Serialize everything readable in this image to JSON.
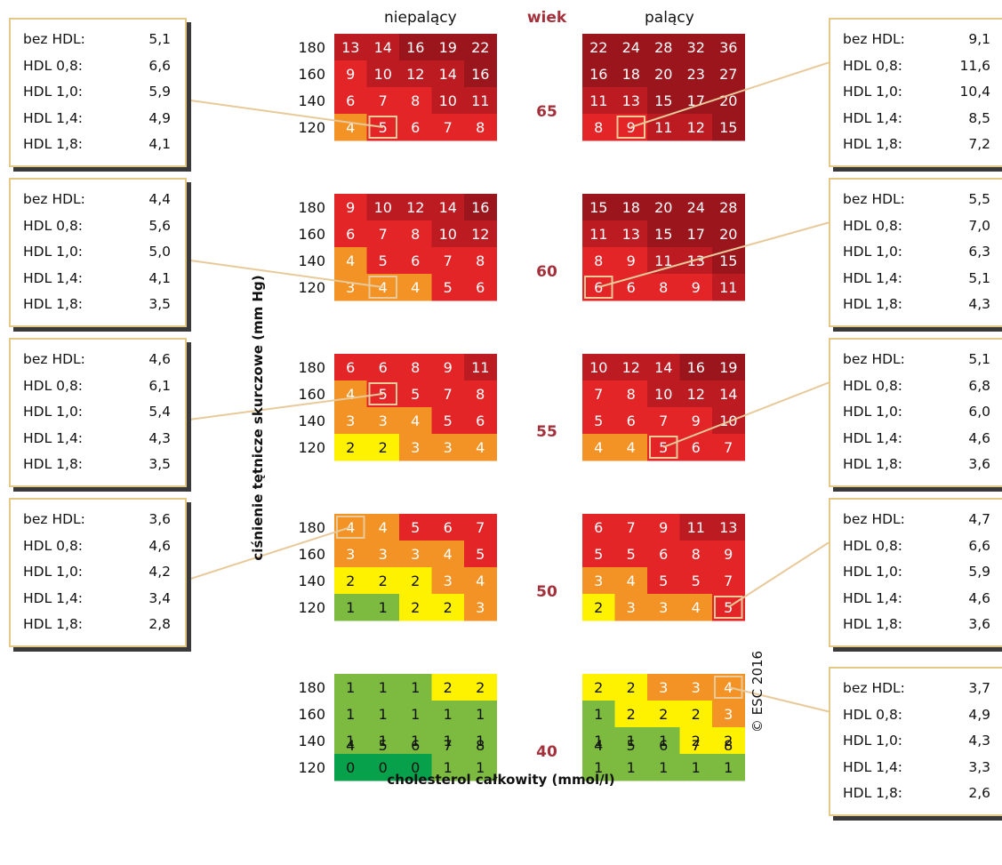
{
  "headers": {
    "nonsmoker": "niepalący",
    "age": "wiek",
    "smoker": "palący"
  },
  "y_axis_title": "ciśnienie tętnicze skurczowe (mm Hg)",
  "x_axis_title": "cholesterol całkowity (mmol/l)",
  "copyright": "© ESC 2016",
  "colors": {
    "dark_green": "#07a14b",
    "green": "#7dbb40",
    "yellow": "#fff200",
    "orange": "#f39325",
    "red": "#e42528",
    "dark_red": "#bd1b22",
    "darkest_red": "#9b151c",
    "highlight": "#e8c99a",
    "age_label": "#a3303a"
  },
  "chart_data": {
    "type": "heatmap",
    "sbp_levels": [
      180,
      160,
      140,
      120
    ],
    "cholesterol_levels": [
      4,
      5,
      6,
      7,
      8
    ],
    "panels": [
      {
        "age": 65,
        "nonsmoker": [
          [
            13,
            14,
            16,
            19,
            22
          ],
          [
            9,
            10,
            12,
            14,
            16
          ],
          [
            6,
            7,
            8,
            10,
            11
          ],
          [
            4,
            5,
            6,
            7,
            8
          ]
        ],
        "smoker": [
          [
            22,
            24,
            28,
            32,
            36
          ],
          [
            16,
            18,
            20,
            23,
            27
          ],
          [
            11,
            13,
            15,
            17,
            20
          ],
          [
            8,
            9,
            11,
            12,
            15
          ]
        ],
        "nonsmoker_highlight": {
          "sbp": 120,
          "chol": 5
        },
        "smoker_highlight": {
          "sbp": 120,
          "chol": 5
        },
        "nonsmoker_box": [
          {
            "label": "bez HDL:",
            "value": "5,1"
          },
          {
            "label": "HDL 0,8:",
            "value": "6,6"
          },
          {
            "label": "HDL 1,0:",
            "value": "5,9"
          },
          {
            "label": "HDL 1,4:",
            "value": "4,9"
          },
          {
            "label": "HDL 1,8:",
            "value": "4,1"
          }
        ],
        "smoker_box": [
          {
            "label": "bez HDL:",
            "value": "9,1"
          },
          {
            "label": "HDL 0,8:",
            "value": "11,6"
          },
          {
            "label": "HDL 1,0:",
            "value": "10,4"
          },
          {
            "label": "HDL 1,4:",
            "value": "8,5"
          },
          {
            "label": "HDL 1,8:",
            "value": "7,2"
          }
        ]
      },
      {
        "age": 60,
        "nonsmoker": [
          [
            9,
            10,
            12,
            14,
            16
          ],
          [
            6,
            7,
            8,
            10,
            12
          ],
          [
            4,
            5,
            6,
            7,
            8
          ],
          [
            3,
            4,
            4,
            5,
            6
          ]
        ],
        "smoker": [
          [
            15,
            18,
            20,
            24,
            28
          ],
          [
            11,
            13,
            15,
            17,
            20
          ],
          [
            8,
            9,
            11,
            13,
            15
          ],
          [
            6,
            6,
            8,
            9,
            11
          ]
        ],
        "nonsmoker_highlight": {
          "sbp": 120,
          "chol": 5
        },
        "smoker_highlight": {
          "sbp": 120,
          "chol": 4
        },
        "nonsmoker_box": [
          {
            "label": "bez HDL:",
            "value": "4,4"
          },
          {
            "label": "HDL 0,8:",
            "value": "5,6"
          },
          {
            "label": "HDL 1,0:",
            "value": "5,0"
          },
          {
            "label": "HDL 1,4:",
            "value": "4,1"
          },
          {
            "label": "HDL 1,8:",
            "value": "3,5"
          }
        ],
        "smoker_box": [
          {
            "label": "bez HDL:",
            "value": "5,5"
          },
          {
            "label": "HDL 0,8:",
            "value": "7,0"
          },
          {
            "label": "HDL 1,0:",
            "value": "6,3"
          },
          {
            "label": "HDL 1,4:",
            "value": "5,1"
          },
          {
            "label": "HDL 1,8:",
            "value": "4,3"
          }
        ]
      },
      {
        "age": 55,
        "nonsmoker": [
          [
            6,
            6,
            8,
            9,
            11
          ],
          [
            4,
            5,
            5,
            7,
            8
          ],
          [
            3,
            3,
            4,
            5,
            6
          ],
          [
            2,
            2,
            3,
            3,
            4
          ]
        ],
        "smoker": [
          [
            10,
            12,
            14,
            16,
            19
          ],
          [
            7,
            8,
            10,
            12,
            14
          ],
          [
            5,
            6,
            7,
            9,
            10
          ],
          [
            4,
            4,
            5,
            6,
            7
          ]
        ],
        "nonsmoker_highlight": {
          "sbp": 160,
          "chol": 5
        },
        "smoker_highlight": {
          "sbp": 120,
          "chol": 6
        },
        "nonsmoker_box": [
          {
            "label": "bez HDL:",
            "value": "4,6"
          },
          {
            "label": "HDL 0,8:",
            "value": "6,1"
          },
          {
            "label": "HDL 1,0:",
            "value": "5,4"
          },
          {
            "label": "HDL 1,4:",
            "value": "4,3"
          },
          {
            "label": "HDL 1,8:",
            "value": "3,5"
          }
        ],
        "smoker_box": [
          {
            "label": "bez HDL:",
            "value": "5,1"
          },
          {
            "label": "HDL 0,8:",
            "value": "6,8"
          },
          {
            "label": "HDL 1,0:",
            "value": "6,0"
          },
          {
            "label": "HDL 1,4:",
            "value": "4,6"
          },
          {
            "label": "HDL 1,8:",
            "value": "3,6"
          }
        ]
      },
      {
        "age": 50,
        "nonsmoker": [
          [
            4,
            4,
            5,
            6,
            7
          ],
          [
            3,
            3,
            3,
            4,
            5
          ],
          [
            2,
            2,
            2,
            3,
            4
          ],
          [
            1,
            1,
            2,
            2,
            3
          ]
        ],
        "smoker": [
          [
            6,
            7,
            9,
            11,
            13
          ],
          [
            5,
            5,
            6,
            8,
            9
          ],
          [
            3,
            4,
            5,
            5,
            7
          ],
          [
            2,
            3,
            3,
            4,
            5
          ]
        ],
        "nonsmoker_highlight": {
          "sbp": 180,
          "chol": 4
        },
        "smoker_highlight": {
          "sbp": 120,
          "chol": 8
        },
        "nonsmoker_box": [
          {
            "label": "bez HDL:",
            "value": "3,6"
          },
          {
            "label": "HDL 0,8:",
            "value": "4,6"
          },
          {
            "label": "HDL 1,0:",
            "value": "4,2"
          },
          {
            "label": "HDL 1,4:",
            "value": "3,4"
          },
          {
            "label": "HDL 1,8:",
            "value": "2,8"
          }
        ],
        "smoker_box": [
          {
            "label": "bez HDL:",
            "value": "4,7"
          },
          {
            "label": "HDL 0,8:",
            "value": "6,6"
          },
          {
            "label": "HDL 1,0:",
            "value": "5,9"
          },
          {
            "label": "HDL 1,4:",
            "value": "4,6"
          },
          {
            "label": "HDL 1,8:",
            "value": "3,6"
          }
        ]
      },
      {
        "age": 40,
        "nonsmoker": [
          [
            1,
            1,
            1,
            2,
            2
          ],
          [
            1,
            1,
            1,
            1,
            1
          ],
          [
            1,
            1,
            1,
            1,
            1
          ],
          [
            0,
            0,
            0,
            1,
            1
          ]
        ],
        "smoker": [
          [
            2,
            2,
            3,
            3,
            4
          ],
          [
            1,
            2,
            2,
            2,
            3
          ],
          [
            1,
            1,
            1,
            2,
            2
          ],
          [
            1,
            1,
            1,
            1,
            1
          ]
        ],
        "nonsmoker_highlight": null,
        "smoker_highlight": {
          "sbp": 180,
          "chol": 8
        },
        "nonsmoker_box": null,
        "smoker_box": [
          {
            "label": "bez HDL:",
            "value": "3,7"
          },
          {
            "label": "HDL 0,8:",
            "value": "4,9"
          },
          {
            "label": "HDL 1,0:",
            "value": "4,3"
          },
          {
            "label": "HDL 1,4:",
            "value": "3,3"
          },
          {
            "label": "HDL 1,8:",
            "value": "2,6"
          }
        ]
      }
    ]
  }
}
